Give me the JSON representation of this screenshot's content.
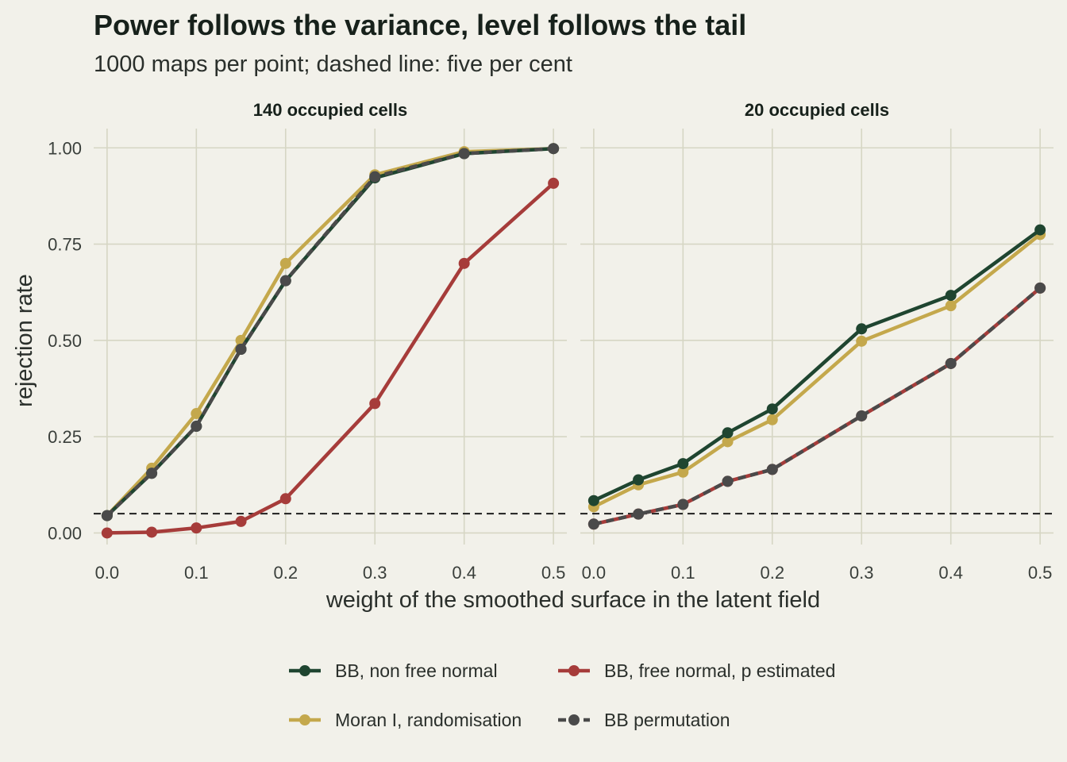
{
  "title": "Power follows the variance, level follows the tail",
  "subtitle": "1000 maps per point; dashed line: five per cent",
  "chart_data": {
    "type": "line",
    "xlabel": "weight of the smoothed surface in the latent field",
    "ylabel": "rejection rate",
    "x": [
      0.0,
      0.05,
      0.1,
      0.15,
      0.2,
      0.3,
      0.4,
      0.5
    ],
    "x_ticks": [
      0.0,
      0.1,
      0.2,
      0.3,
      0.4,
      0.5
    ],
    "x_tick_labels": [
      "0.0",
      "0.1",
      "0.2",
      "0.3",
      "0.4",
      "0.5"
    ],
    "xlim": [
      -0.015,
      0.515
    ],
    "y_ticks": [
      0.0,
      0.25,
      0.5,
      0.75,
      1.0
    ],
    "y_tick_labels": [
      "0.00",
      "0.25",
      "0.50",
      "0.75",
      "1.00"
    ],
    "ylim": [
      -0.03,
      1.05
    ],
    "reference_line": 0.05,
    "grid": true,
    "legend_position": "bottom",
    "series_styles": [
      {
        "name": "BB, non free normal",
        "color": "#1f4530",
        "dash": false
      },
      {
        "name": "Moran I, randomisation",
        "color": "#c4a84c",
        "dash": false
      },
      {
        "name": "BB, free normal, p estimated",
        "color": "#a63c3a",
        "dash": false
      },
      {
        "name": "BB permutation",
        "color": "#4a4a4a",
        "dash": true
      }
    ],
    "panels": [
      {
        "label": "140 occupied cells",
        "series": [
          {
            "name": "BB, non free normal",
            "values": [
              0.045,
              0.155,
              0.277,
              0.477,
              0.655,
              0.922,
              0.985,
              0.998
            ]
          },
          {
            "name": "Moran I, randomisation",
            "values": [
              0.045,
              0.168,
              0.31,
              0.5,
              0.7,
              0.93,
              0.99,
              0.998
            ]
          },
          {
            "name": "BB, free normal, p estimated",
            "values": [
              0.0,
              0.002,
              0.013,
              0.03,
              0.089,
              0.336,
              0.7,
              0.908
            ]
          },
          {
            "name": "BB permutation",
            "values": [
              0.045,
              0.155,
              0.277,
              0.477,
              0.655,
              0.925,
              0.985,
              0.998
            ]
          }
        ]
      },
      {
        "label": "20 occupied cells",
        "series": [
          {
            "name": "BB, non free normal",
            "values": [
              0.084,
              0.138,
              0.18,
              0.26,
              0.322,
              0.53,
              0.617,
              0.787
            ]
          },
          {
            "name": "Moran I, randomisation",
            "values": [
              0.068,
              0.125,
              0.158,
              0.237,
              0.294,
              0.498,
              0.59,
              0.775
            ]
          },
          {
            "name": "BB, free normal, p estimated",
            "values": [
              0.023,
              0.049,
              0.074,
              0.134,
              0.165,
              0.304,
              0.44,
              0.636
            ]
          },
          {
            "name": "BB permutation",
            "values": [
              0.023,
              0.049,
              0.074,
              0.134,
              0.165,
              0.304,
              0.44,
              0.636
            ]
          }
        ]
      }
    ]
  }
}
